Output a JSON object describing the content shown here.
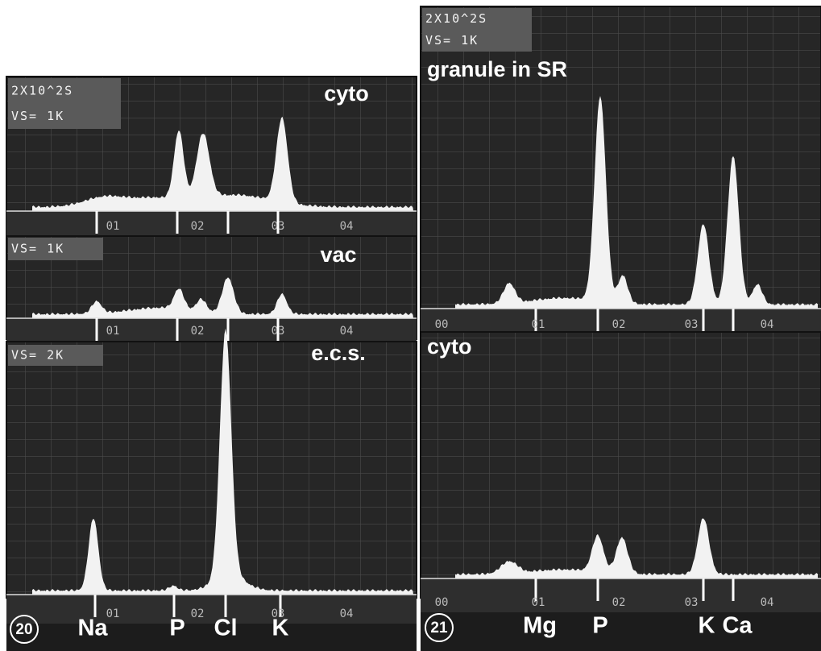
{
  "figures": [
    {
      "number": "20",
      "panels": [
        {
          "header": [
            "2X10^2S",
            "VS= 1K"
          ],
          "label": "cyto",
          "ticks": [
            "01",
            "02",
            "03",
            "04"
          ]
        },
        {
          "header": [
            "VS= 1K"
          ],
          "label": "vac",
          "ticks": [
            "01",
            "02",
            "03",
            "04"
          ]
        },
        {
          "header": [
            "VS= 2K"
          ],
          "label": "e.c.s.",
          "ticks": [
            "01",
            "02",
            "03",
            "04"
          ]
        }
      ],
      "elements": [
        "Na",
        "P",
        "Cl",
        "K"
      ]
    },
    {
      "number": "21",
      "panels": [
        {
          "header": [
            "2X10^2S",
            "VS= 1K"
          ],
          "label": "granule in SR",
          "ticks": [
            "00",
            "01",
            "02",
            "03",
            "04"
          ]
        },
        {
          "header": [],
          "label": "cyto",
          "ticks": [
            "00",
            "01",
            "02",
            "03",
            "04"
          ]
        }
      ],
      "elements": [
        "Mg",
        "P",
        "K",
        "Ca"
      ]
    }
  ]
}
